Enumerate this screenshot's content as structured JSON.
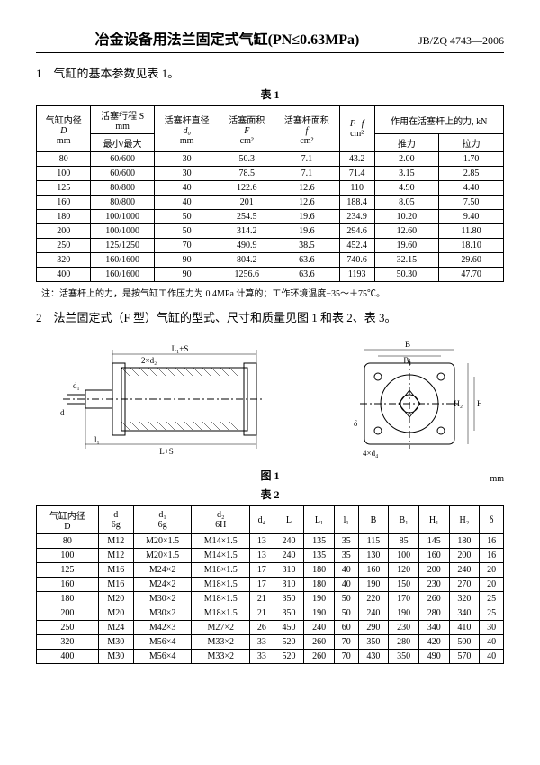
{
  "header": {
    "title": "冶金设备用法兰固定式气缸(PN≤0.63MPa)",
    "std": "JB/ZQ 4743—2006"
  },
  "section1": {
    "heading": "1　气缸的基本参数见表 1。",
    "caption": "表 1",
    "cols": {
      "c1a": "气缸内径",
      "c1b": "D",
      "c1c": "mm",
      "c2a": "活塞行程 S",
      "c2b": "mm",
      "c2c": "最小/最大",
      "c3a": "活塞杆直径",
      "c3b": "d₀",
      "c3c": "mm",
      "c4a": "活塞面积",
      "c4b": "F",
      "c4c": "cm²",
      "c5a": "活塞杆面积",
      "c5b": "f",
      "c5c": "cm²",
      "c6a": "F−f",
      "c6b": "cm²",
      "c7a": "作用在活塞杆上的力, kN",
      "c7b": "推力",
      "c7c": "拉力"
    },
    "rows": [
      [
        "80",
        "60/600",
        "30",
        "50.3",
        "7.1",
        "43.2",
        "2.00",
        "1.70"
      ],
      [
        "100",
        "60/600",
        "30",
        "78.5",
        "7.1",
        "71.4",
        "3.15",
        "2.85"
      ],
      [
        "125",
        "80/800",
        "40",
        "122.6",
        "12.6",
        "110",
        "4.90",
        "4.40"
      ],
      [
        "160",
        "80/800",
        "40",
        "201",
        "12.6",
        "188.4",
        "8.05",
        "7.50"
      ],
      [
        "180",
        "100/1000",
        "50",
        "254.5",
        "19.6",
        "234.9",
        "10.20",
        "9.40"
      ],
      [
        "200",
        "100/1000",
        "50",
        "314.2",
        "19.6",
        "294.6",
        "12.60",
        "11.80"
      ],
      [
        "250",
        "125/1250",
        "70",
        "490.9",
        "38.5",
        "452.4",
        "19.60",
        "18.10"
      ],
      [
        "320",
        "160/1600",
        "90",
        "804.2",
        "63.6",
        "740.6",
        "32.15",
        "29.60"
      ],
      [
        "400",
        "160/1600",
        "90",
        "1256.6",
        "63.6",
        "1193",
        "50.30",
        "47.70"
      ]
    ],
    "note": "注：活塞杆上的力，是按气缸工作压力为 0.4MPa 计算的；工作环境温度−35～＋75℃。"
  },
  "section2": {
    "heading": "2　法兰固定式（F 型）气缸的型式、尺寸和质量见图 1 和表 2、表 3。",
    "figcap": "图 1",
    "caption": "表 2",
    "unit": "mm",
    "cols": [
      "气缸内径\nD",
      "d\n6g",
      "d₁\n6g",
      "d₂\n6H",
      "d₄",
      "L",
      "L₁",
      "l₁",
      "B",
      "B₁",
      "H₁",
      "H₂",
      "δ"
    ],
    "rows": [
      [
        "80",
        "M12",
        "M20×1.5",
        "M14×1.5",
        "13",
        "240",
        "135",
        "35",
        "115",
        "85",
        "145",
        "180",
        "16"
      ],
      [
        "100",
        "M12",
        "M20×1.5",
        "M14×1.5",
        "13",
        "240",
        "135",
        "35",
        "130",
        "100",
        "160",
        "200",
        "16"
      ],
      [
        "125",
        "M16",
        "M24×2",
        "M18×1.5",
        "17",
        "310",
        "180",
        "40",
        "160",
        "120",
        "200",
        "240",
        "20"
      ],
      [
        "160",
        "M16",
        "M24×2",
        "M18×1.5",
        "17",
        "310",
        "180",
        "40",
        "190",
        "150",
        "230",
        "270",
        "20"
      ],
      [
        "180",
        "M20",
        "M30×2",
        "M18×1.5",
        "21",
        "350",
        "190",
        "50",
        "220",
        "170",
        "260",
        "320",
        "25"
      ],
      [
        "200",
        "M20",
        "M30×2",
        "M18×1.5",
        "21",
        "350",
        "190",
        "50",
        "240",
        "190",
        "280",
        "340",
        "25"
      ],
      [
        "250",
        "M24",
        "M42×3",
        "M27×2",
        "26",
        "450",
        "240",
        "60",
        "290",
        "230",
        "340",
        "410",
        "30"
      ],
      [
        "320",
        "M30",
        "M56×4",
        "M33×2",
        "33",
        "520",
        "260",
        "70",
        "350",
        "280",
        "420",
        "500",
        "40"
      ],
      [
        "400",
        "M30",
        "M56×4",
        "M33×2",
        "33",
        "520",
        "260",
        "70",
        "430",
        "350",
        "490",
        "570",
        "40"
      ]
    ]
  },
  "figlabels": {
    "a": "L₁+S",
    "b": "2×d₂",
    "c": "L+S",
    "d": "l₁",
    "e": "d₁",
    "f": "d",
    "g": "B",
    "h": "B₁",
    "i": "4×d₄",
    "j": "H₁",
    "k": "H₂",
    "l": "δ"
  }
}
